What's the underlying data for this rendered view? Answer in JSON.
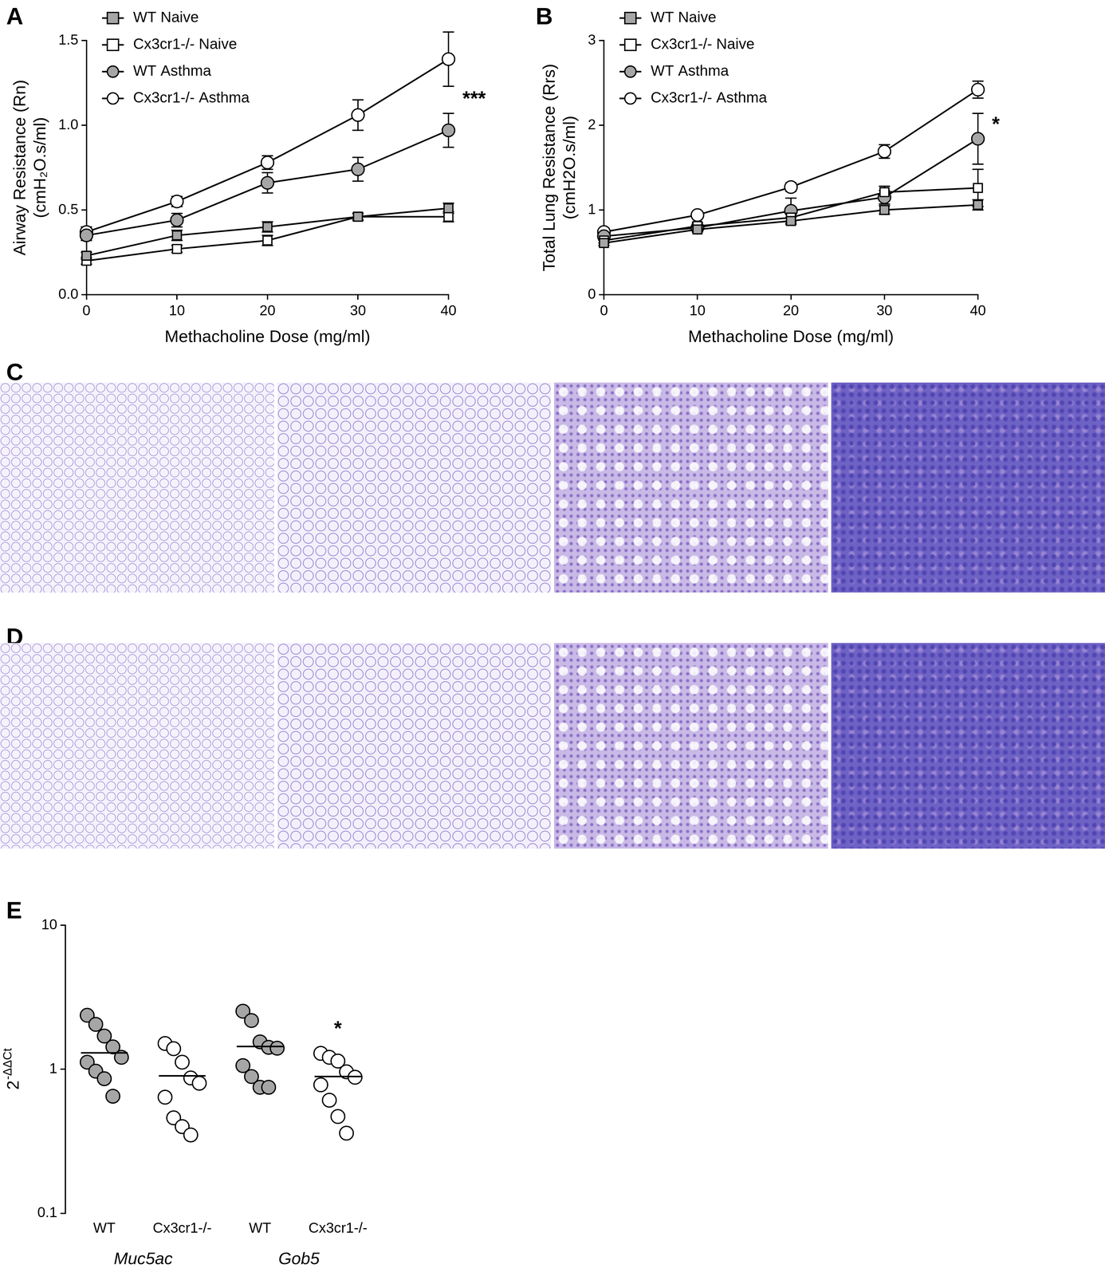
{
  "chart_data": [
    {
      "title": "A",
      "type": "line",
      "xlabel": "Methacholine Dose (mg/ml)",
      "ylabel": [
        "Airway Resistance (Rn)",
        "(cmH₂O.s/ml)"
      ],
      "x": [
        0,
        10,
        20,
        30,
        40
      ],
      "xlim": [
        0,
        40
      ],
      "xticks": [
        0,
        10,
        20,
        30,
        40
      ],
      "ylim": [
        0,
        1.5
      ],
      "yticks": [
        {
          "value": 0,
          "label": "0.0"
        },
        {
          "value": 0.5,
          "label": "0.5"
        },
        {
          "value": 1,
          "label": "1.0"
        },
        {
          "value": 1.5,
          "label": "1.5"
        }
      ],
      "grid": false,
      "legend": "upper left",
      "series": [
        {
          "name": "WT Naive",
          "color": "#a6a6a6",
          "marker": "square",
          "values": [
            0.23,
            0.35,
            0.4,
            0.46,
            0.51
          ],
          "errors": [
            0.02,
            0.03,
            0.03,
            0.02,
            0.03
          ]
        },
        {
          "name": "Cx3cr1-/- Naive",
          "color": "#ffffff",
          "marker": "square",
          "values": [
            0.2,
            0.27,
            0.32,
            0.46,
            0.46
          ],
          "errors": [
            0.02,
            0.02,
            0.03,
            0.02,
            0.03
          ]
        },
        {
          "name": "WT Asthma",
          "color": "#a6a6a6",
          "marker": "circle",
          "values": [
            0.35,
            0.44,
            0.66,
            0.74,
            0.97
          ],
          "errors": [
            0.03,
            0.04,
            0.06,
            0.07,
            0.1
          ]
        },
        {
          "name": "Cx3cr1-/- Asthma",
          "color": "#ffffff",
          "marker": "circle",
          "values": [
            0.37,
            0.55,
            0.78,
            1.06,
            1.39
          ],
          "errors": [
            0.03,
            0.03,
            0.04,
            0.09,
            0.16
          ]
        }
      ],
      "annotations": [
        {
          "text": "***",
          "x": 40,
          "y": 1.15
        }
      ]
    },
    {
      "title": "B",
      "type": "line",
      "xlabel": "Methacholine Dose (mg/ml)",
      "ylabel": [
        "Total Lung Resistance (Rrs)",
        "(cmH2O.s/ml)"
      ],
      "x": [
        0,
        10,
        20,
        30,
        40
      ],
      "xlim": [
        0,
        40
      ],
      "xticks": [
        0,
        10,
        20,
        30,
        40
      ],
      "ylim": [
        0,
        3
      ],
      "yticks": [
        0,
        1,
        2,
        3
      ],
      "grid": false,
      "legend": "upper left",
      "series": [
        {
          "name": "WT Naive",
          "color": "#a6a6a6",
          "marker": "square",
          "values": [
            0.61,
            0.77,
            0.87,
            1.0,
            1.06
          ],
          "errors": [
            0.03,
            0.03,
            0.04,
            0.05,
            0.06
          ]
        },
        {
          "name": "Cx3cr1-/- Naive",
          "color": "#ffffff",
          "marker": "square",
          "values": [
            0.64,
            0.81,
            0.91,
            1.21,
            1.26
          ],
          "errors": [
            0.03,
            0.04,
            0.05,
            0.07,
            0.22
          ]
        },
        {
          "name": "WT Asthma",
          "color": "#a6a6a6",
          "marker": "circle",
          "values": [
            0.69,
            0.79,
            0.99,
            1.15,
            1.84
          ],
          "errors": [
            0.03,
            0.04,
            0.15,
            0.08,
            0.3
          ]
        },
        {
          "name": "Cx3cr1-/- Asthma",
          "color": "#ffffff",
          "marker": "circle",
          "values": [
            0.74,
            0.94,
            1.27,
            1.69,
            2.42
          ],
          "errors": [
            0.03,
            0.04,
            0.05,
            0.08,
            0.1
          ]
        }
      ],
      "annotations": [
        {
          "text": "*",
          "x": 40,
          "y": 2.0
        }
      ]
    },
    {
      "title": "E",
      "type": "scatter",
      "ylabel": "2-ΔΔCt",
      "categories": [
        "WT",
        "Cx3cr1-/-",
        "WT",
        "Cx3cr1-/-"
      ],
      "groups": [
        "Muc5ac",
        "Gob5"
      ],
      "log": "y",
      "ylim": [
        0.1,
        10
      ],
      "yticks": [
        0.1,
        1,
        10
      ],
      "grid": false,
      "colors": [
        "#a6a6a6",
        "#ffffff",
        "#a6a6a6",
        "#ffffff"
      ],
      "values": [
        [
          2.37,
          2.05,
          1.7,
          1.43,
          1.21,
          1.12,
          0.97,
          0.86,
          0.65
        ],
        [
          1.51,
          1.39,
          1.12,
          0.87,
          0.8,
          0.64,
          0.46,
          0.4,
          0.35
        ],
        [
          2.53,
          2.18,
          1.55,
          1.42,
          1.4,
          1.06,
          0.89,
          0.75,
          0.75
        ],
        [
          1.29,
          1.21,
          1.14,
          0.96,
          0.88,
          0.78,
          0.61,
          0.47,
          0.36
        ]
      ],
      "means": [
        1.3,
        0.9,
        1.44,
        0.89
      ],
      "annotations": [
        {
          "text": "*",
          "x": 3,
          "y": 1.88
        }
      ]
    }
  ],
  "images": [
    {
      "label": "C"
    },
    {
      "label": "D"
    }
  ]
}
